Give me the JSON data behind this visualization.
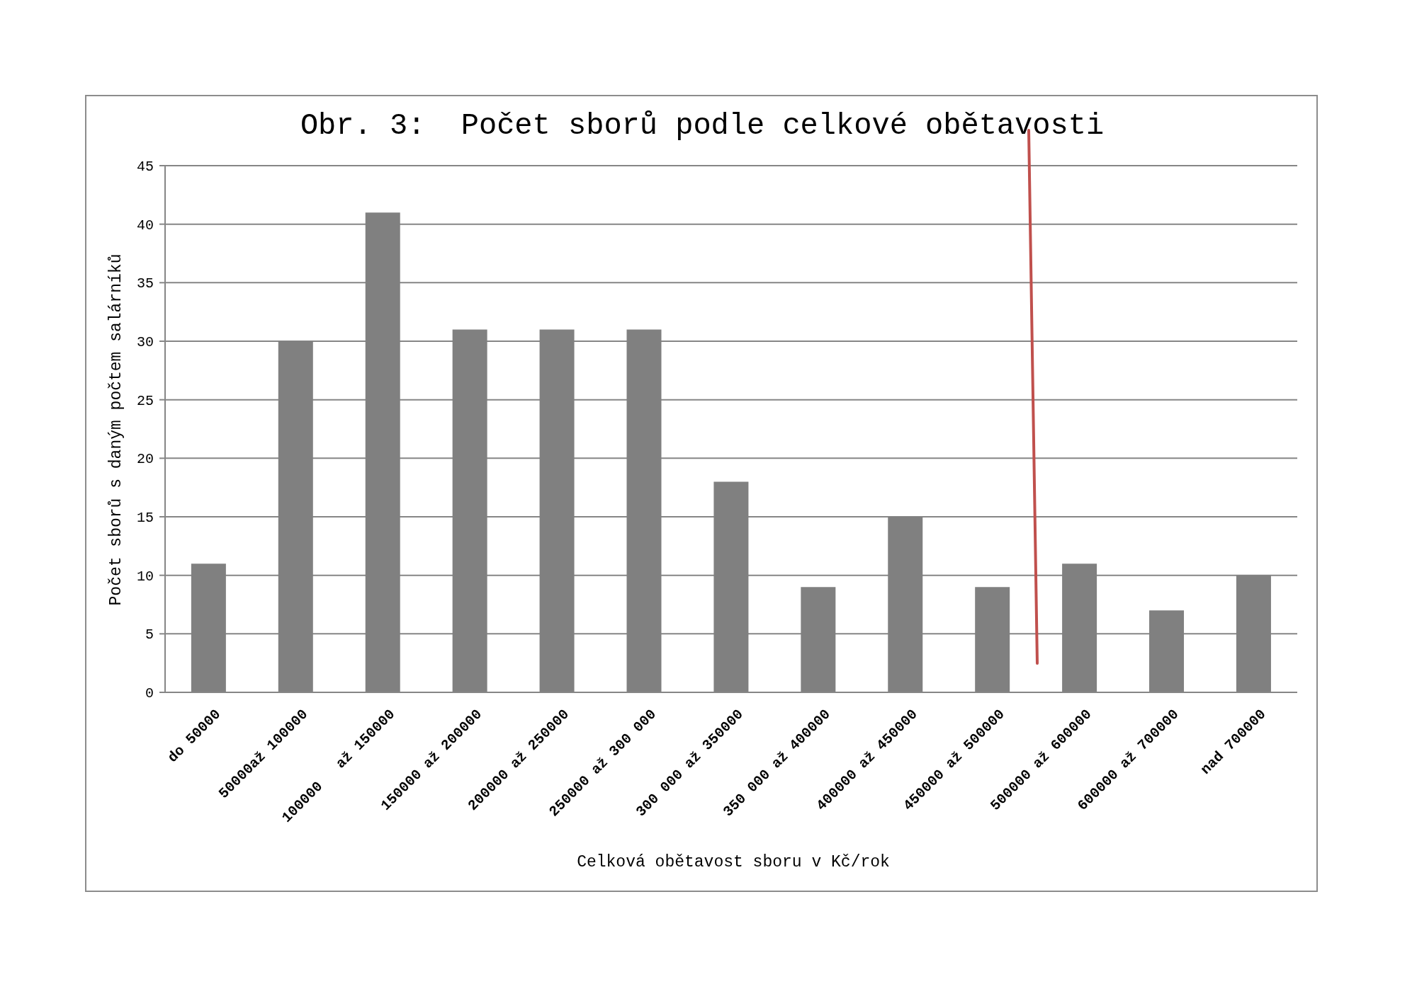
{
  "chart_data": {
    "type": "bar",
    "title": "Obr. 3:  Počet sborů podle celkové obětavosti",
    "xlabel": "Celková obětavost sboru v Kč/rok",
    "ylabel": "Počet sborů s daným počtem salárníků",
    "categories": [
      "do 50000",
      "50000až 100000",
      "100000   až 150000",
      "150000 až 200000",
      "200000 až 250000",
      "250000 až 300 000",
      "300 000 až 350000",
      "350 000 až 400000",
      "400000 až 450000",
      "450000 až 500000",
      "500000 až 600000",
      "600000 až 700000",
      "nad 700000"
    ],
    "values": [
      11,
      30,
      41,
      31,
      31,
      31,
      18,
      9,
      15,
      9,
      11,
      7,
      10
    ],
    "color": "#808080",
    "ylim": [
      0,
      45
    ],
    "yticks": [
      0,
      5,
      10,
      15,
      20,
      25,
      30,
      35,
      40,
      45
    ],
    "grid": "y"
  }
}
